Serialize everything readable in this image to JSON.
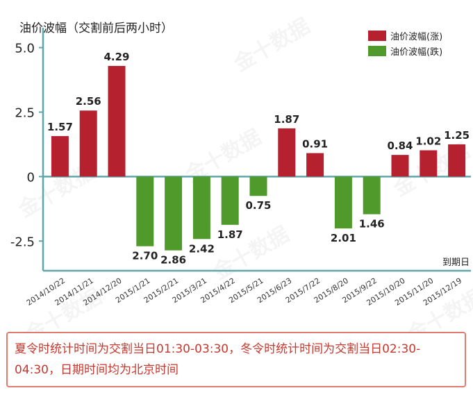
{
  "chart_data": {
    "type": "bar",
    "title": "油价波幅（交割前后两小时）",
    "xlabel": "到期日",
    "ylabel": "",
    "categories": [
      "2014/10/22",
      "2014/11/21",
      "2014/12/20",
      "2015/1/21",
      "2015/2/21",
      "2015/3/21",
      "2015/4/22",
      "2015/5/21",
      "2015/6/23",
      "2015/7/22",
      "2015/8/20",
      "2015/9/22",
      "2015/10/20",
      "2015/11/20",
      "2015/12/19"
    ],
    "values": [
      1.57,
      2.56,
      4.29,
      -2.7,
      -2.86,
      -2.42,
      -1.87,
      -0.75,
      1.87,
      0.91,
      -2.01,
      -1.46,
      0.84,
      1.02,
      1.25
    ],
    "data_labels": [
      "1.57",
      "2.56",
      "4.29",
      "2.70",
      "2.86",
      "2.42",
      "1.87",
      "0.75",
      "1.87",
      "0.91",
      "2.01",
      "1.46",
      "0.84",
      "1.02",
      "1.25"
    ],
    "y_ticks": [
      5.0,
      2.5,
      0,
      -2.5
    ],
    "y_tick_labels": [
      "5.0",
      "2.5",
      "0",
      "-2.5"
    ],
    "ylim": [
      -3.65,
      5.5
    ],
    "grid": false,
    "legend": {
      "placement": "top-right",
      "entries": [
        {
          "name": "油价波幅(涨)",
          "color": "#b5212f"
        },
        {
          "name": "油价波幅(跌)",
          "color": "#4f9a2b"
        }
      ]
    },
    "colors": {
      "up": "#b5212f",
      "down": "#4f9a2b",
      "axis": "#5fa6a8"
    }
  },
  "note": "夏令时统计时间为交割当日01:30-03:30，冬令时统计时间为交割当日02:30-04:30，日期时间均为北京时间",
  "watermark": "金十数据"
}
